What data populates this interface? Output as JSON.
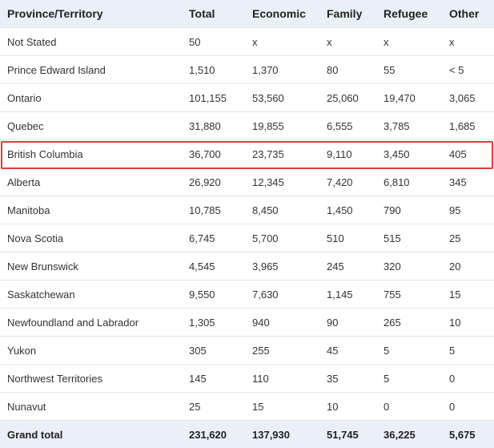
{
  "headers": [
    "Province/Territory",
    "Total",
    "Economic",
    "Family",
    "Refugee",
    "Other"
  ],
  "rows": [
    [
      "Not Stated",
      "50",
      "x",
      "x",
      "x",
      "x"
    ],
    [
      "Prince Edward Island",
      "1,510",
      "1,370",
      "80",
      "55",
      "< 5"
    ],
    [
      "Ontario",
      "101,155",
      "53,560",
      "25,060",
      "19,470",
      "3,065"
    ],
    [
      "Quebec",
      "31,880",
      "19,855",
      "6,555",
      "3,785",
      "1,685"
    ],
    [
      "British Columbia",
      "36,700",
      "23,735",
      "9,110",
      "3,450",
      "405"
    ],
    [
      "Alberta",
      "26,920",
      "12,345",
      "7,420",
      "6,810",
      "345"
    ],
    [
      "Manitoba",
      "10,785",
      "8,450",
      "1,450",
      "790",
      "95"
    ],
    [
      "Nova Scotia",
      "6,745",
      "5,700",
      "510",
      "515",
      "25"
    ],
    [
      "New Brunswick",
      "4,545",
      "3,965",
      "245",
      "320",
      "20"
    ],
    [
      "Saskatchewan",
      "9,550",
      "7,630",
      "1,145",
      "755",
      "15"
    ],
    [
      "Newfoundland and Labrador",
      "1,305",
      "940",
      "90",
      "265",
      "10"
    ],
    [
      "Yukon",
      "305",
      "255",
      "45",
      "5",
      "5"
    ],
    [
      "Northwest Territories",
      "145",
      "110",
      "35",
      "5",
      "0"
    ],
    [
      "Nunavut",
      "25",
      "15",
      "10",
      "0",
      "0"
    ]
  ],
  "total": [
    "Grand total",
    "231,620",
    "137,930",
    "51,745",
    "36,225",
    "5,675"
  ],
  "highlighted_row": "British Columbia",
  "highlight_color": "#e53935"
}
